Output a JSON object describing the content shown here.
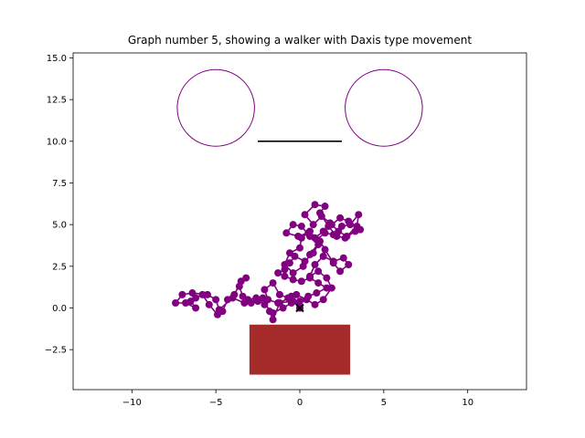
{
  "chart_data": {
    "type": "line",
    "title": "Graph number 5, showing a walker with Daxis type movement",
    "xlabel": "",
    "ylabel": "",
    "xlim": [
      -13.5,
      13.5
    ],
    "ylim": [
      -4.9,
      15.3
    ],
    "x_ticks": [
      -10,
      -5,
      0,
      5,
      10
    ],
    "y_ticks": [
      -2.5,
      0.0,
      2.5,
      5.0,
      7.5,
      10.0,
      12.5,
      15.0
    ],
    "x_tick_labels": [
      "−10",
      "−5",
      "0",
      "5",
      "10"
    ],
    "y_tick_labels": [
      "−2.5",
      "0.0",
      "2.5",
      "5.0",
      "7.5",
      "10.0",
      "12.5",
      "15.0"
    ],
    "grid": false,
    "series": [
      {
        "color": "#800080",
        "marker": "circle",
        "points": [
          [
            0.0,
            0.0
          ],
          [
            -0.4,
            0.4
          ],
          [
            -1.3,
            0.3
          ],
          [
            -1.9,
            0.5
          ],
          [
            -2.1,
            1.1
          ],
          [
            -1.6,
            1.5
          ],
          [
            -1.2,
            0.8
          ],
          [
            -0.7,
            0.6
          ],
          [
            -0.2,
            0.8
          ],
          [
            0.4,
            0.5
          ],
          [
            0.9,
            0.2
          ],
          [
            1.4,
            0.5
          ],
          [
            1.9,
            1.2
          ],
          [
            1.6,
            1.8
          ],
          [
            1.1,
            2.2
          ],
          [
            0.6,
            1.9
          ],
          [
            0.9,
            2.6
          ],
          [
            1.4,
            3.1
          ],
          [
            2.0,
            2.8
          ],
          [
            2.6,
            3.0
          ],
          [
            2.9,
            2.6
          ],
          [
            2.4,
            2.2
          ],
          [
            2.0,
            2.7
          ],
          [
            1.5,
            3.5
          ],
          [
            1.2,
            4.0
          ],
          [
            0.6,
            3.2
          ],
          [
            0.2,
            2.5
          ],
          [
            -0.4,
            2.1
          ],
          [
            -0.9,
            2.6
          ],
          [
            -0.6,
            3.3
          ],
          [
            0.0,
            3.6
          ],
          [
            0.1,
            4.2
          ],
          [
            0.6,
            4.6
          ],
          [
            1.0,
            4.1
          ],
          [
            1.5,
            4.5
          ],
          [
            2.0,
            4.4
          ],
          [
            2.5,
            4.9
          ],
          [
            3.0,
            5.0
          ],
          [
            3.5,
            5.6
          ],
          [
            3.4,
            4.9
          ],
          [
            2.8,
            4.3
          ],
          [
            2.3,
            4.6
          ],
          [
            1.8,
            5.1
          ],
          [
            1.3,
            5.5
          ],
          [
            0.8,
            5.0
          ],
          [
            0.3,
            5.6
          ],
          [
            0.9,
            6.2
          ],
          [
            1.5,
            6.1
          ],
          [
            1.2,
            5.7
          ],
          [
            1.7,
            4.9
          ],
          [
            2.2,
            4.3
          ],
          [
            2.7,
            4.2
          ],
          [
            3.3,
            4.6
          ],
          [
            3.6,
            4.7
          ],
          [
            2.9,
            5.2
          ],
          [
            2.4,
            5.4
          ],
          [
            1.9,
            5.0
          ],
          [
            1.4,
            4.6
          ],
          [
            0.9,
            4.2
          ],
          [
            0.5,
            4.5
          ],
          [
            -0.1,
            4.3
          ],
          [
            -0.8,
            4.5
          ],
          [
            -0.4,
            5.0
          ],
          [
            0.1,
            4.9
          ],
          [
            0.6,
            4.3
          ],
          [
            1.1,
            3.8
          ],
          [
            0.8,
            3.3
          ],
          [
            0.3,
            2.8
          ],
          [
            -0.3,
            3.1
          ],
          [
            -0.6,
            2.7
          ],
          [
            -0.9,
            2.3
          ],
          [
            -1.3,
            2.1
          ],
          [
            -0.9,
            1.9
          ],
          [
            -0.4,
            1.7
          ],
          [
            0.1,
            1.6
          ],
          [
            0.6,
            1.8
          ],
          [
            1.1,
            1.5
          ],
          [
            1.6,
            1.2
          ],
          [
            1.0,
            0.9
          ],
          [
            0.5,
            0.7
          ],
          [
            0.0,
            0.4
          ],
          [
            -0.5,
            0.3
          ],
          [
            -1.0,
            0.0
          ],
          [
            -1.6,
            -0.3
          ],
          [
            -2.1,
            0.2
          ],
          [
            -2.6,
            0.6
          ],
          [
            -3.1,
            0.5
          ],
          [
            -3.4,
            0.7
          ],
          [
            -3.6,
            1.3
          ],
          [
            -3.2,
            1.8
          ],
          [
            -3.5,
            1.6
          ],
          [
            -3.9,
            0.8
          ],
          [
            -4.3,
            0.5
          ],
          [
            -4.6,
            -0.2
          ],
          [
            -4.9,
            -0.4
          ],
          [
            -5.4,
            0.2
          ],
          [
            -5.8,
            0.8
          ],
          [
            -6.2,
            0.6
          ],
          [
            -6.5,
            0.4
          ],
          [
            -6.2,
            0.0
          ],
          [
            -6.8,
            0.3
          ],
          [
            -7.4,
            0.3
          ],
          [
            -7.0,
            0.8
          ],
          [
            -6.4,
            0.9
          ],
          [
            -5.5,
            0.8
          ],
          [
            -5.0,
            0.5
          ],
          [
            -4.8,
            -0.1
          ],
          [
            -4.0,
            0.6
          ],
          [
            -3.3,
            0.3
          ],
          [
            -2.9,
            0.3
          ],
          [
            -2.5,
            0.4
          ],
          [
            -2.2,
            0.6
          ],
          [
            -1.8,
            -0.2
          ],
          [
            -1.6,
            -0.7
          ],
          [
            -1.2,
            0.3
          ],
          [
            -0.5,
            0.7
          ],
          [
            0.0,
            0.0
          ]
        ]
      }
    ],
    "annotations": [
      {
        "type": "x-marker",
        "x": 0,
        "y": 0,
        "color": "#000000"
      },
      {
        "type": "circle",
        "cx": -5,
        "cy": 12,
        "r": 2.3,
        "color": "#800080"
      },
      {
        "type": "circle",
        "cx": 5,
        "cy": 12,
        "r": 2.3,
        "color": "#800080"
      },
      {
        "type": "segment",
        "x1": -2.5,
        "y1": 10,
        "x2": 2.5,
        "y2": 10,
        "color": "#000000"
      },
      {
        "type": "rectangle",
        "x1": -3,
        "y1": -4,
        "x2": 3,
        "y2": -1,
        "color": "#a52a2a"
      }
    ]
  }
}
